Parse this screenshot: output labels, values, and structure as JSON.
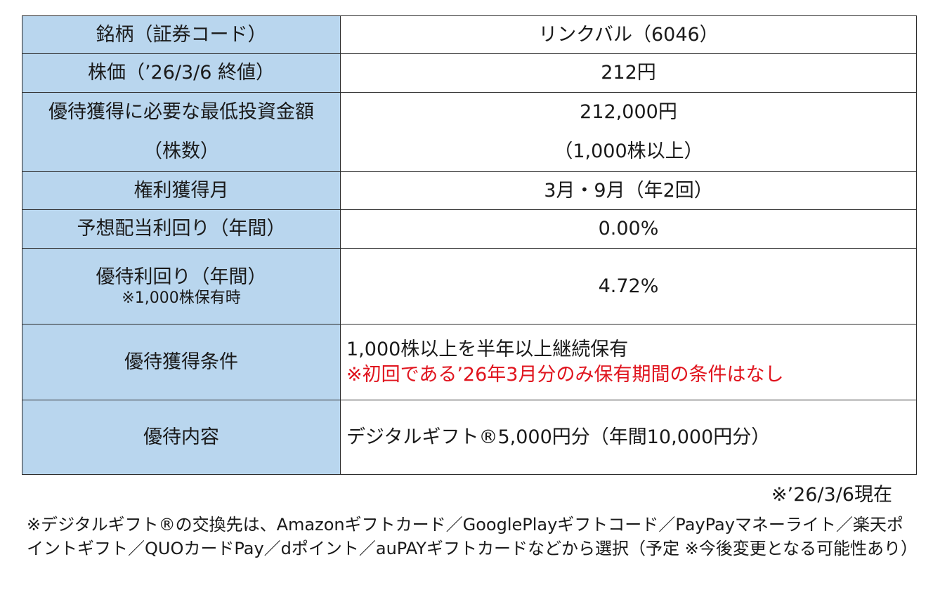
{
  "table": {
    "rows": [
      {
        "label": "銘柄（証券コード）",
        "value": "リンクバル（6046）"
      },
      {
        "label": "株価（’26/3/6 終値）",
        "value": "212円"
      },
      {
        "label_line1": "優待獲得に必要な最低投資金額",
        "label_line2": "（株数）",
        "value_line1": "212,000円",
        "value_line2": "（1,000株以上）"
      },
      {
        "label": "権利獲得月",
        "value": "3月・9月（年2回）"
      },
      {
        "label": "予想配当利回り（年間）",
        "value": "0.00%"
      },
      {
        "label": "優待利回り（年間）",
        "label_sub": "※1,000株保有時",
        "value": "4.72%"
      },
      {
        "label": "優待獲得条件",
        "value_line1": "1,000株以上を半年以上継続保有",
        "value_line2": "※初回である’26年3月分のみ保有期間の条件はなし"
      },
      {
        "label": "優待内容",
        "value": "デジタルギフト®5,000円分（年間10,000円分）"
      }
    ]
  },
  "as_of": "※’26/3/6現在",
  "footnote": "※デジタルギフト®の交換先は、Amazonギフトカード／GooglePlayギフトコード／PayPayマネーライト／楽天ポイントギフト／QUOカードPay／dポイント／auPAYギフトカードなどから選択（予定 ※今後変更となる可能性あり）",
  "colors": {
    "header_bg": "#b9d6ee",
    "alert_text": "#e0141e",
    "border": "#2b2b2b"
  }
}
